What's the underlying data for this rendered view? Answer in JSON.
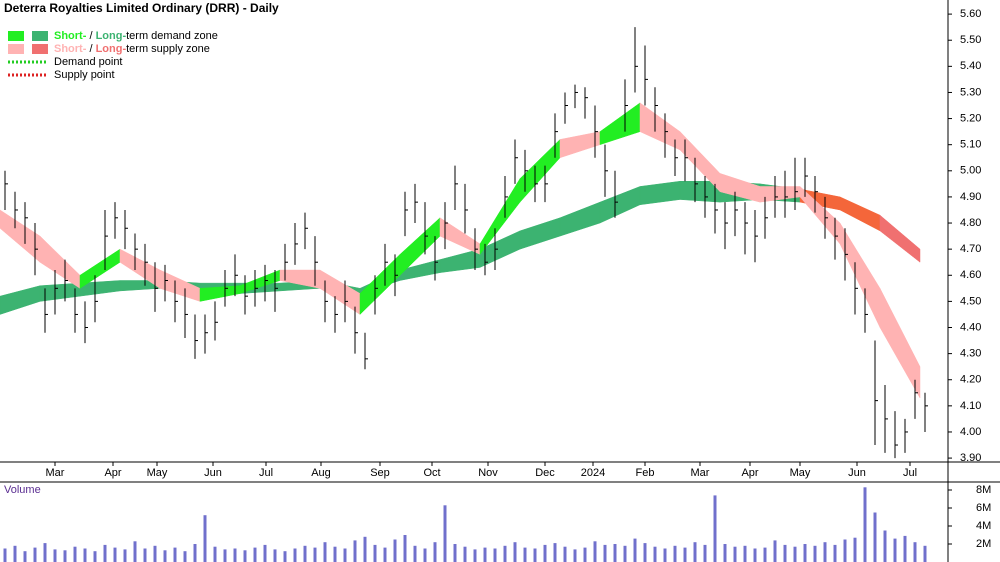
{
  "chart_data": {
    "type": "ohlc",
    "title": "Deterra Royalties Limited Ordinary (DRR) - Daily",
    "legend": [
      {
        "parts": [
          "Short-",
          " / ",
          "Long-",
          "term demand zone"
        ],
        "part_colors": [
          "#22ee22",
          "#000000",
          "#3cb371",
          "#000000"
        ],
        "swatches": [
          "#22ee22",
          "#3cb371"
        ]
      },
      {
        "parts": [
          "Short-",
          " / ",
          "Long-",
          "term supply zone"
        ],
        "part_colors": [
          "#ffb3b3",
          "#000000",
          "#f07070",
          "#000000"
        ],
        "swatches": [
          "#ffb3b3",
          "#f07070"
        ]
      },
      {
        "parts": [
          "Demand point"
        ],
        "part_colors": [
          "#000000"
        ],
        "line_color": "#22cc22"
      },
      {
        "parts": [
          "Supply point"
        ],
        "part_colors": [
          "#000000"
        ],
        "line_color": "#dd2222"
      }
    ],
    "xlim": [
      0,
      94.8
    ],
    "xticks": [
      {
        "value": 5.5,
        "label": "Mar"
      },
      {
        "value": 11.3,
        "label": "Apr"
      },
      {
        "value": 15.7,
        "label": "May"
      },
      {
        "value": 21.3,
        "label": "Jun"
      },
      {
        "value": 26.6,
        "label": "Jul"
      },
      {
        "value": 32.1,
        "label": "Aug"
      },
      {
        "value": 38.0,
        "label": "Sep"
      },
      {
        "value": 43.2,
        "label": "Oct"
      },
      {
        "value": 48.8,
        "label": "Nov"
      },
      {
        "value": 54.5,
        "label": "Dec"
      },
      {
        "value": 59.3,
        "label": "2024"
      },
      {
        "value": 64.5,
        "label": "Feb"
      },
      {
        "value": 70.0,
        "label": "Mar"
      },
      {
        "value": 75.0,
        "label": "Apr"
      },
      {
        "value": 80.0,
        "label": "May"
      },
      {
        "value": 85.7,
        "label": "Jun"
      },
      {
        "value": 91.0,
        "label": "Jul"
      }
    ],
    "ylim": [
      3.885,
      5.654
    ],
    "yticks": [
      {
        "value": 5.6,
        "label": "5.60"
      },
      {
        "value": 5.5,
        "label": "5.50"
      },
      {
        "value": 5.4,
        "label": "5.40"
      },
      {
        "value": 5.3,
        "label": "5.30"
      },
      {
        "value": 5.2,
        "label": "5.20"
      },
      {
        "value": 5.1,
        "label": "5.10"
      },
      {
        "value": 5.0,
        "label": "5.00"
      },
      {
        "value": 4.9,
        "label": "4.90"
      },
      {
        "value": 4.8,
        "label": "4.80"
      },
      {
        "value": 4.7,
        "label": "4.70"
      },
      {
        "value": 4.6,
        "label": "4.60"
      },
      {
        "value": 4.5,
        "label": "4.50"
      },
      {
        "value": 4.4,
        "label": "4.40"
      },
      {
        "value": 4.3,
        "label": "4.30"
      },
      {
        "value": 4.2,
        "label": "4.20"
      },
      {
        "value": 4.1,
        "label": "4.10"
      },
      {
        "value": 4.0,
        "label": "4.00"
      },
      {
        "value": 3.9,
        "label": "3.90"
      }
    ],
    "bar_color": "#000000",
    "high": [
      5.0,
      4.92,
      4.88,
      4.8,
      4.55,
      4.62,
      4.66,
      4.55,
      4.5,
      4.6,
      4.85,
      4.88,
      4.85,
      4.76,
      4.72,
      4.65,
      4.64,
      4.58,
      4.55,
      4.45,
      4.45,
      4.5,
      4.62,
      4.68,
      4.6,
      4.62,
      4.64,
      4.62,
      4.72,
      4.8,
      4.84,
      4.75,
      4.58,
      4.52,
      4.58,
      4.48,
      4.38,
      4.6,
      4.72,
      4.68,
      4.92,
      4.95,
      4.88,
      4.75,
      4.88,
      5.02,
      4.95,
      4.78,
      4.72,
      4.78,
      4.98,
      5.12,
      5.08,
      5.02,
      5.02,
      5.22,
      5.3,
      5.33,
      5.32,
      5.25,
      5.1,
      5.0,
      5.35,
      5.55,
      5.48,
      5.32,
      5.22,
      5.12,
      5.12,
      5.05,
      4.98,
      4.95,
      4.88,
      4.92,
      4.88,
      4.85,
      4.9,
      4.98,
      5.0,
      5.05,
      5.05,
      4.98,
      4.9,
      4.82,
      4.78,
      4.65,
      4.55,
      4.35,
      4.18,
      4.08,
      4.05,
      4.2,
      4.15
    ],
    "low": [
      4.85,
      4.78,
      4.72,
      4.6,
      4.38,
      4.45,
      4.5,
      4.38,
      4.34,
      4.42,
      4.62,
      4.74,
      4.7,
      4.62,
      4.56,
      4.46,
      4.5,
      4.42,
      4.36,
      4.28,
      4.3,
      4.35,
      4.48,
      4.52,
      4.45,
      4.48,
      4.5,
      4.46,
      4.58,
      4.64,
      4.7,
      4.56,
      4.42,
      4.38,
      4.42,
      4.3,
      4.24,
      4.45,
      4.56,
      4.52,
      4.75,
      4.8,
      4.68,
      4.58,
      4.7,
      4.85,
      4.76,
      4.62,
      4.6,
      4.62,
      4.82,
      4.95,
      4.92,
      4.88,
      4.88,
      5.05,
      5.18,
      5.24,
      5.2,
      5.05,
      4.9,
      4.82,
      5.15,
      5.3,
      5.25,
      5.15,
      5.05,
      4.98,
      4.96,
      4.88,
      4.82,
      4.76,
      4.7,
      4.75,
      4.68,
      4.65,
      4.74,
      4.82,
      4.82,
      4.85,
      4.9,
      4.84,
      4.74,
      4.66,
      4.58,
      4.45,
      4.38,
      3.95,
      3.92,
      3.9,
      3.92,
      4.05,
      4.0
    ],
    "close": [
      4.95,
      4.85,
      4.82,
      4.7,
      4.45,
      4.55,
      4.58,
      4.45,
      4.4,
      4.5,
      4.75,
      4.82,
      4.78,
      4.7,
      4.65,
      4.55,
      4.58,
      4.5,
      4.45,
      4.35,
      4.38,
      4.42,
      4.55,
      4.6,
      4.52,
      4.55,
      4.58,
      4.55,
      4.65,
      4.72,
      4.78,
      4.65,
      4.5,
      4.45,
      4.5,
      4.38,
      4.28,
      4.55,
      4.65,
      4.6,
      4.85,
      4.88,
      4.75,
      4.65,
      4.8,
      4.95,
      4.85,
      4.7,
      4.65,
      4.7,
      4.9,
      5.05,
      5.0,
      4.95,
      4.95,
      5.15,
      5.25,
      5.3,
      5.28,
      5.15,
      5.0,
      4.88,
      5.25,
      5.4,
      5.35,
      5.25,
      5.15,
      5.05,
      5.05,
      4.95,
      4.9,
      4.85,
      4.8,
      4.85,
      4.8,
      4.75,
      4.82,
      4.9,
      4.9,
      4.92,
      4.98,
      4.92,
      4.82,
      4.75,
      4.68,
      4.55,
      4.45,
      4.12,
      4.05,
      3.95,
      4.0,
      4.15,
      4.1
    ],
    "zones": [
      {
        "x": [
          0,
          4,
          8,
          12,
          16,
          20,
          24,
          28,
          32,
          36,
          40,
          44,
          48,
          52,
          56,
          60,
          64,
          68,
          72,
          76,
          80,
          84,
          88,
          92
        ],
        "lower": [
          4.45,
          4.5,
          4.52,
          4.54,
          4.55,
          4.54,
          4.53,
          4.54,
          4.55,
          4.53,
          4.58,
          4.61,
          4.63,
          4.7,
          4.75,
          4.8,
          4.87,
          4.89,
          4.88,
          4.89,
          4.88,
          4.85,
          4.77,
          4.65
        ],
        "upper": [
          4.52,
          4.56,
          4.57,
          4.58,
          4.58,
          4.57,
          4.57,
          4.57,
          4.58,
          4.55,
          4.62,
          4.66,
          4.7,
          4.77,
          4.82,
          4.88,
          4.94,
          4.96,
          4.96,
          4.95,
          4.93,
          4.9,
          4.83,
          4.7
        ],
        "colors": [
          "#3cb371",
          "#3cb371",
          "#3cb371",
          "#3cb371",
          "#3cb371",
          "#3cb371",
          "#3cb371",
          "#3cb371",
          "#3cb371",
          "#3cb371",
          "#3cb371",
          "#3cb371",
          "#3cb371",
          "#3cb371",
          "#3cb371",
          "#3cb371",
          "#3cb371",
          "#3cb371",
          "#3cb371",
          "#3cb371",
          "#f4663a",
          "#f4663a",
          "#f07070"
        ]
      },
      {
        "x": [
          0,
          4,
          8,
          12,
          16,
          20,
          24,
          28,
          32,
          36,
          40,
          44,
          48,
          52,
          56,
          60,
          64,
          68,
          72,
          76,
          80,
          84,
          88,
          92
        ],
        "lower": [
          4.78,
          4.65,
          4.55,
          4.65,
          4.55,
          4.5,
          4.53,
          4.58,
          4.55,
          4.45,
          4.6,
          4.75,
          4.68,
          4.88,
          5.05,
          5.1,
          5.15,
          5.08,
          4.92,
          4.88,
          4.9,
          4.72,
          4.4,
          4.13
        ],
        "upper": [
          4.85,
          4.75,
          4.6,
          4.7,
          4.62,
          4.55,
          4.56,
          4.62,
          4.62,
          4.53,
          4.68,
          4.82,
          4.72,
          4.97,
          5.12,
          5.15,
          5.26,
          5.15,
          4.99,
          4.94,
          4.94,
          4.8,
          4.55,
          4.25
        ],
        "colors": [
          "#ffb3b3",
          "#ffb3b3",
          "#22ee22",
          "#ffb3b3",
          "#ffb3b3",
          "#22ee22",
          "#22ee22",
          "#ffb3b3",
          "#ffb3b3",
          "#22ee22",
          "#22ee22",
          "#ffb3b3",
          "#22ee22",
          "#22ee22",
          "#ffb3b3",
          "#22ee22",
          "#ffb3b3",
          "#ffb3b3",
          "#ffb3b3",
          "#ffb3b3",
          "#ffb3b3",
          "#ffb3b3",
          "#ffb3b3"
        ]
      }
    ],
    "volume_label": "Volume",
    "volume_color": "#7070cc",
    "volume_ylim": [
      0,
      8890000
    ],
    "volume_yticks": [
      {
        "value": 8000000,
        "label": "8M"
      },
      {
        "value": 6000000,
        "label": "6M"
      },
      {
        "value": 4000000,
        "label": "4M"
      },
      {
        "value": 2000000,
        "label": "2M"
      }
    ],
    "volume": [
      1500000,
      1800000,
      1200000,
      1600000,
      2100000,
      1400000,
      1300000,
      1700000,
      1500000,
      1200000,
      1900000,
      1600000,
      1400000,
      2300000,
      1500000,
      1800000,
      1300000,
      1600000,
      1200000,
      2000000,
      5200000,
      1700000,
      1400000,
      1500000,
      1300000,
      1600000,
      1900000,
      1400000,
      1200000,
      1500000,
      1800000,
      1600000,
      2200000,
      1700000,
      1500000,
      2400000,
      2800000,
      1900000,
      1600000,
      2500000,
      3000000,
      1800000,
      1500000,
      2200000,
      6300000,
      2000000,
      1700000,
      1400000,
      1600000,
      1500000,
      1800000,
      2200000,
      1600000,
      1500000,
      1900000,
      2100000,
      1700000,
      1400000,
      1600000,
      2300000,
      1900000,
      2000000,
      1800000,
      2600000,
      2100000,
      1700000,
      1500000,
      1800000,
      1600000,
      2200000,
      1900000,
      7400000,
      2000000,
      1700000,
      1800000,
      1500000,
      1600000,
      2400000,
      1900000,
      1700000,
      2000000,
      1800000,
      2200000,
      1900000,
      2500000,
      2700000,
      8300000,
      5500000,
      3500000,
      2600000,
      2900000,
      2200000,
      1800000
    ]
  }
}
